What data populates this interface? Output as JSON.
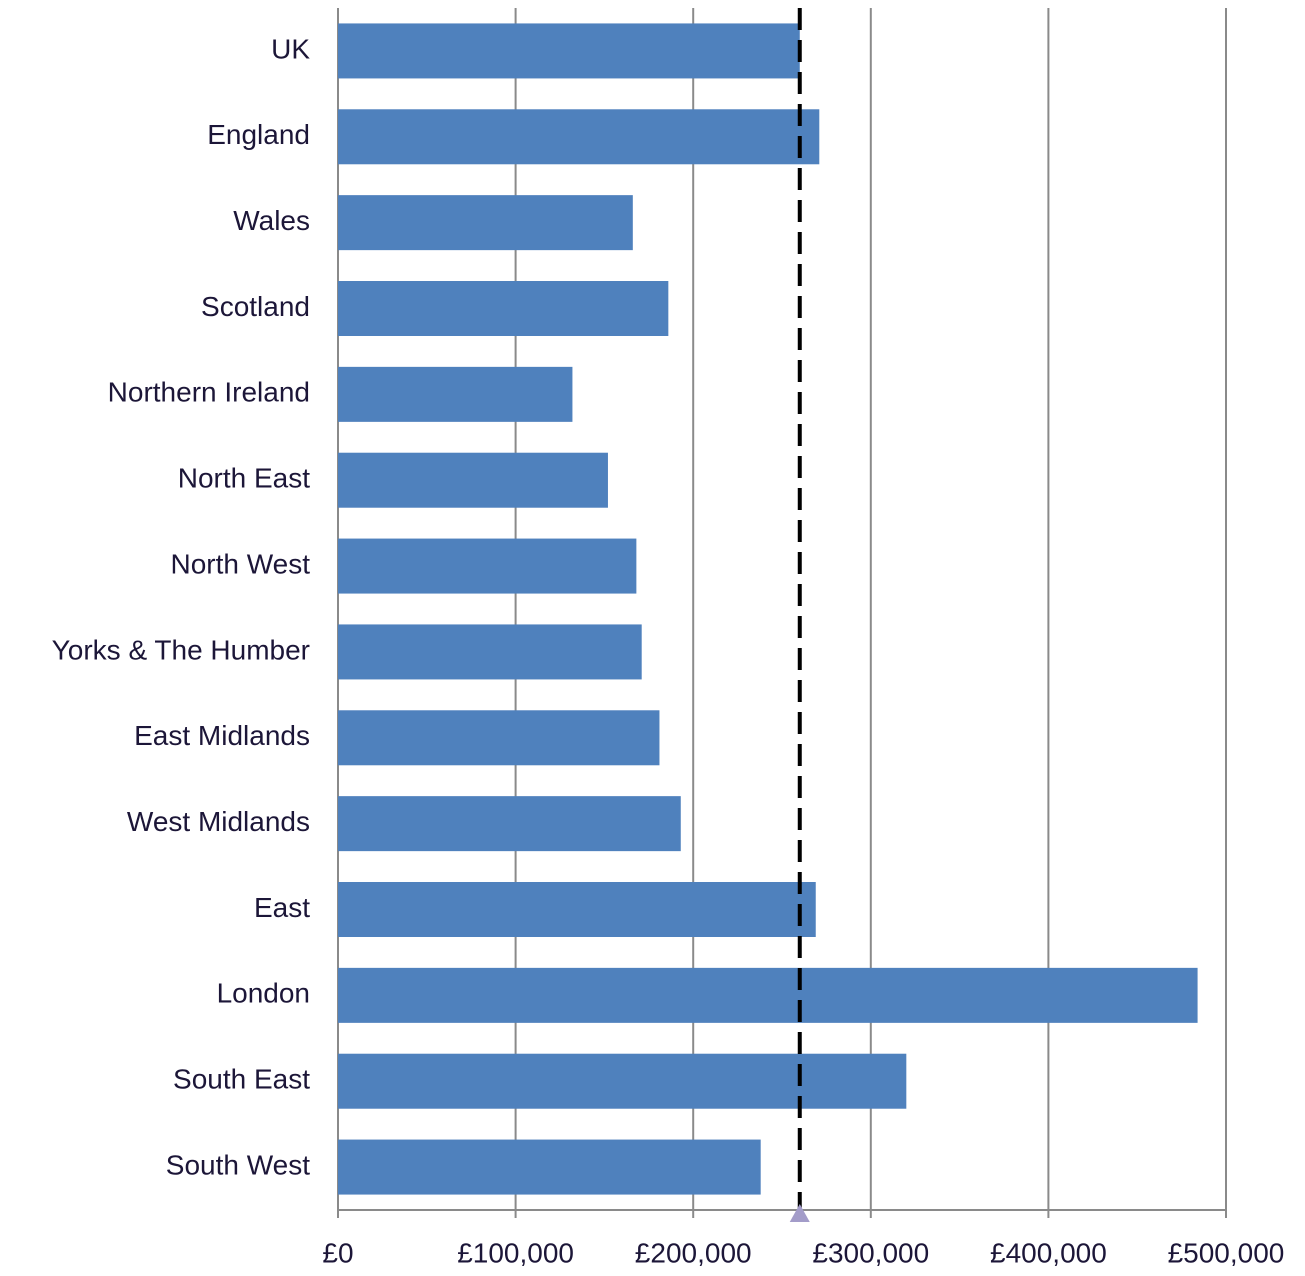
{
  "chart_data": {
    "type": "bar",
    "orientation": "horizontal",
    "categories": [
      "UK",
      "England",
      "Wales",
      "Scotland",
      "Northern Ireland",
      "North East",
      "North West",
      "Yorks & The Humber",
      "East Midlands",
      "West Midlands",
      "East",
      "London",
      "South East",
      "South West"
    ],
    "values": [
      260000,
      271000,
      166000,
      186000,
      132000,
      152000,
      168000,
      171000,
      181000,
      193000,
      269000,
      484000,
      320000,
      238000
    ],
    "color": "#4f81bd",
    "xlim": [
      0,
      500000
    ],
    "xticks": [
      {
        "value": 0,
        "label": "£0"
      },
      {
        "value": 100000,
        "label": "£100,000"
      },
      {
        "value": 200000,
        "label": "£200,000"
      },
      {
        "value": 300000,
        "label": "£300,000"
      },
      {
        "value": 400000,
        "label": "£400,000"
      },
      {
        "value": 500000,
        "label": "£500,000"
      }
    ],
    "grid": true,
    "reference_line": 260000
  }
}
